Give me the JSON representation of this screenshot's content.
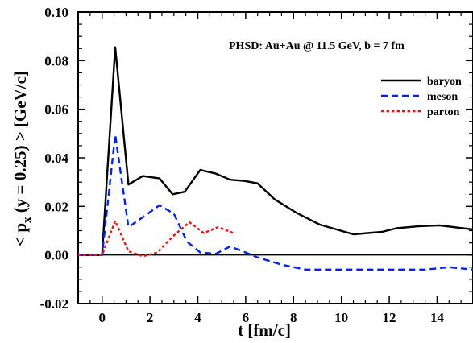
{
  "chart_data": {
    "type": "line",
    "title": "",
    "annotation": "PHSD:  Au+Au @ 11.5 GeV,  b = 7 fm",
    "xlabel": "t [fm/c]",
    "ylabel_parts": {
      "pre": "< p",
      "sub": "x",
      "post": " (y = 0.25) > [GeV/c]"
    },
    "xlim": [
      -1.0,
      15.5
    ],
    "ylim": [
      -0.02,
      0.1
    ],
    "x_ticks": [
      0,
      2,
      4,
      6,
      8,
      10,
      12,
      14
    ],
    "x_tick_labels": [
      "0",
      "2",
      "4",
      "6",
      "8",
      "10",
      "12",
      "14"
    ],
    "y_ticks": [
      -0.02,
      0.0,
      0.02,
      0.04,
      0.06,
      0.08,
      0.1
    ],
    "y_tick_labels": [
      "-0.02",
      "0.00",
      "0.02",
      "0.04",
      "0.06",
      "0.08",
      "0.10"
    ],
    "zero_line": true,
    "grid": false,
    "legend_position": "top-right",
    "series": [
      {
        "name": "baryon",
        "color": "#000000",
        "dash": "solid",
        "x": [
          -1.0,
          0.0,
          0.55,
          1.1,
          1.7,
          2.4,
          2.95,
          3.45,
          4.1,
          4.75,
          5.35,
          5.95,
          6.5,
          7.2,
          8.1,
          9.1,
          10.5,
          11.7,
          12.3,
          13.2,
          14.1,
          15.5
        ],
        "y": [
          0.0,
          0.0,
          0.0855,
          0.029,
          0.0325,
          0.0315,
          0.025,
          0.026,
          0.035,
          0.0335,
          0.031,
          0.0305,
          0.0295,
          0.023,
          0.0175,
          0.0125,
          0.0085,
          0.0095,
          0.011,
          0.0118,
          0.0122,
          0.0105
        ]
      },
      {
        "name": "meson",
        "color": "#0022ee",
        "dash": "dashed",
        "x": [
          -1.0,
          0.0,
          0.55,
          1.1,
          1.7,
          2.4,
          3.0,
          3.55,
          4.1,
          4.75,
          5.35,
          5.95,
          6.5,
          7.5,
          8.5,
          9.5,
          10.5,
          11.5,
          12.5,
          13.5,
          14.5,
          15.5
        ],
        "y": [
          0.0,
          0.0,
          0.0495,
          0.0115,
          0.0155,
          0.0205,
          0.017,
          0.0055,
          0.001,
          0.0005,
          0.0035,
          0.0012,
          -0.001,
          -0.004,
          -0.006,
          -0.006,
          -0.006,
          -0.006,
          -0.006,
          -0.006,
          -0.005,
          -0.006
        ]
      },
      {
        "name": "parton",
        "color": "#ee1111",
        "dash": "dotted",
        "x": [
          -1.0,
          0.0,
          0.55,
          1.1,
          1.7,
          2.3,
          3.0,
          3.65,
          4.25,
          4.85,
          5.5
        ],
        "y": [
          0.0,
          0.0,
          0.014,
          0.0015,
          -0.0005,
          0.001,
          0.008,
          0.0135,
          0.009,
          0.0115,
          0.009
        ]
      }
    ]
  }
}
